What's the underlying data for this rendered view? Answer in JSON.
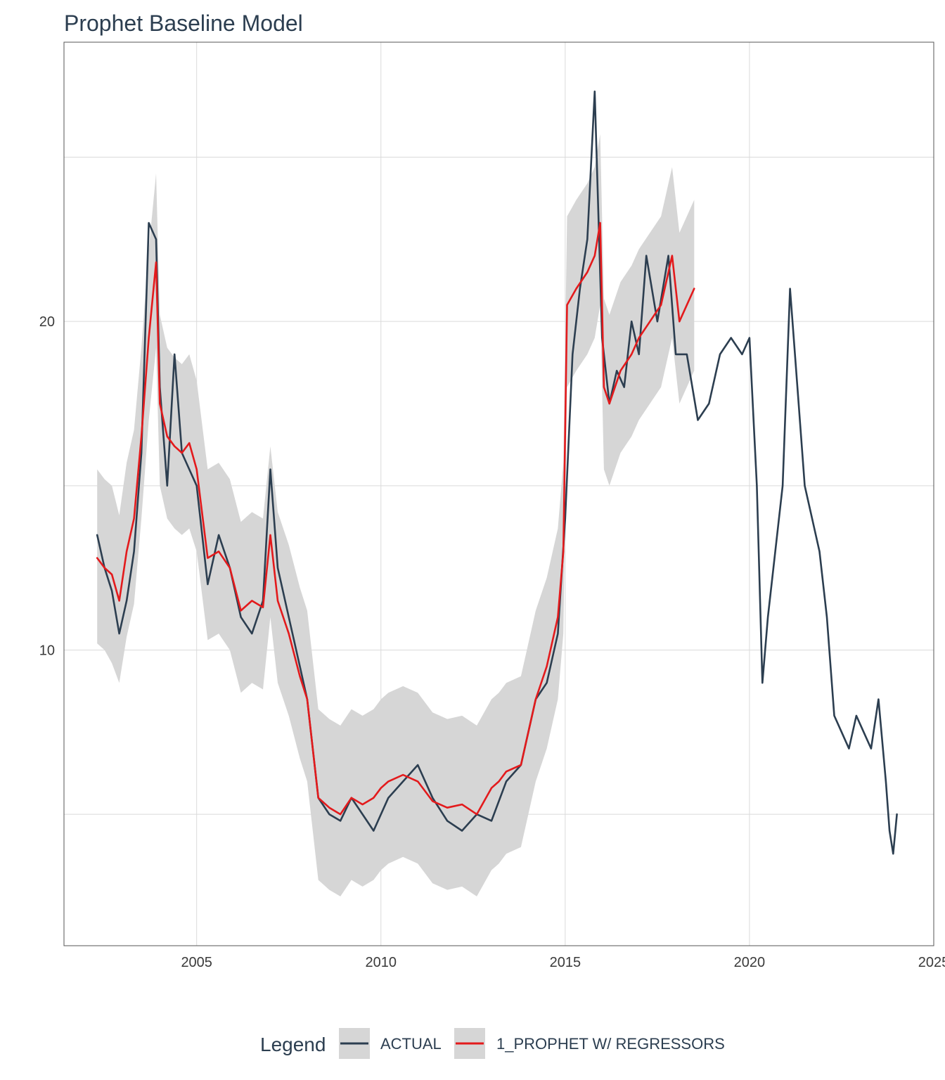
{
  "chart_data": {
    "type": "line",
    "title": "Prophet Baseline Model",
    "xlabel": "",
    "ylabel": "",
    "xlim": [
      2001.4,
      2025.0
    ],
    "ylim": [
      1.0,
      28.5
    ],
    "x_ticks": [
      2005,
      2010,
      2015,
      2020,
      2025
    ],
    "x_tick_labels": [
      "2005",
      "2010",
      "2015",
      "2020",
      "2025"
    ],
    "y_ticks": [
      10,
      20
    ],
    "y_tick_labels": [
      "10",
      "20"
    ],
    "y_minor_gridlines": [
      5,
      15,
      25
    ],
    "grid": true,
    "legend": {
      "title": "Legend",
      "position": "bottom",
      "entries": [
        "ACTUAL",
        "1_PROPHET W/ REGRESSORS"
      ]
    },
    "colors": {
      "actual": "#2c3e50",
      "forecast": "#e31a1c",
      "band": "#d6d6d6",
      "grid": "#dadada",
      "panel_border": "#555555"
    },
    "series": [
      {
        "name": "ACTUAL",
        "x": [
          2002.3,
          2002.5,
          2002.7,
          2002.9,
          2003.1,
          2003.3,
          2003.5,
          2003.7,
          2003.9,
          2004.0,
          2004.2,
          2004.4,
          2004.6,
          2004.8,
          2005.0,
          2005.3,
          2005.6,
          2005.9,
          2006.2,
          2006.5,
          2006.8,
          2007.0,
          2007.2,
          2007.5,
          2007.8,
          2008.0,
          2008.3,
          2008.6,
          2008.9,
          2009.2,
          2009.5,
          2009.8,
          2010.2,
          2010.6,
          2011.0,
          2011.4,
          2011.8,
          2012.2,
          2012.6,
          2013.0,
          2013.4,
          2013.8,
          2014.2,
          2014.5,
          2014.8,
          2015.0,
          2015.2,
          2015.4,
          2015.6,
          2015.8,
          2016.0,
          2016.2,
          2016.4,
          2016.6,
          2016.8,
          2017.0,
          2017.2,
          2017.5,
          2017.8,
          2018.0,
          2018.3,
          2018.6,
          2018.9,
          2019.2,
          2019.5,
          2019.8,
          2020.0,
          2020.2,
          2020.35,
          2020.5,
          2020.7,
          2020.9,
          2021.1,
          2021.3,
          2021.5,
          2021.7,
          2021.9,
          2022.1,
          2022.3,
          2022.5,
          2022.7,
          2022.9,
          2023.1,
          2023.3,
          2023.5,
          2023.7,
          2023.8,
          2023.9,
          2024.0
        ],
        "y": [
          13.5,
          12.5,
          11.8,
          10.5,
          11.5,
          13.0,
          16.0,
          23.0,
          22.5,
          18.0,
          15.0,
          19.0,
          16.0,
          15.5,
          15.0,
          12.0,
          13.5,
          12.5,
          11.0,
          10.5,
          11.5,
          15.5,
          12.5,
          11.0,
          9.5,
          8.5,
          5.5,
          5.0,
          4.8,
          5.5,
          5.0,
          4.5,
          5.5,
          6.0,
          6.5,
          5.5,
          4.8,
          4.5,
          5.0,
          4.8,
          6.0,
          6.5,
          8.5,
          9.0,
          10.5,
          14.0,
          19.0,
          21.0,
          22.5,
          27.0,
          19.5,
          17.5,
          18.5,
          18.0,
          20.0,
          19.0,
          22.0,
          20.0,
          22.0,
          19.0,
          19.0,
          17.0,
          17.5,
          19.0,
          19.5,
          19.0,
          19.5,
          15.0,
          9.0,
          11.0,
          13.0,
          15.0,
          21.0,
          18.0,
          15.0,
          14.0,
          13.0,
          11.0,
          8.0,
          7.5,
          7.0,
          8.0,
          7.5,
          7.0,
          8.5,
          6.0,
          4.5,
          3.8,
          5.0
        ]
      },
      {
        "name": "1_PROPHET W/ REGRESSORS",
        "x": [
          2002.3,
          2002.5,
          2002.7,
          2002.9,
          2003.1,
          2003.3,
          2003.5,
          2003.7,
          2003.9,
          2004.0,
          2004.2,
          2004.4,
          2004.6,
          2004.8,
          2005.0,
          2005.3,
          2005.6,
          2005.9,
          2006.2,
          2006.5,
          2006.8,
          2007.0,
          2007.2,
          2007.5,
          2007.8,
          2008.0,
          2008.3,
          2008.6,
          2008.9,
          2009.2,
          2009.5,
          2009.8,
          2010.0,
          2010.2,
          2010.6,
          2011.0,
          2011.4,
          2011.8,
          2012.2,
          2012.6,
          2013.0,
          2013.2,
          2013.4,
          2013.8,
          2014.2,
          2014.5,
          2014.8,
          2014.95,
          2015.05,
          2015.3,
          2015.6,
          2015.8,
          2015.95,
          2016.05,
          2016.2,
          2016.5,
          2016.8,
          2017.0,
          2017.3,
          2017.6,
          2017.9,
          2018.1,
          2018.3,
          2018.5
        ],
        "y": [
          12.8,
          12.5,
          12.3,
          11.5,
          13.0,
          14.0,
          16.5,
          19.5,
          21.8,
          17.5,
          16.5,
          16.2,
          16.0,
          16.3,
          15.5,
          12.8,
          13.0,
          12.5,
          11.2,
          11.5,
          11.3,
          13.5,
          11.5,
          10.5,
          9.2,
          8.5,
          5.5,
          5.2,
          5.0,
          5.5,
          5.3,
          5.5,
          5.8,
          6.0,
          6.2,
          6.0,
          5.4,
          5.2,
          5.3,
          5.0,
          5.8,
          6.0,
          6.3,
          6.5,
          8.5,
          9.5,
          11.0,
          13.0,
          20.5,
          21.0,
          21.5,
          22.0,
          23.0,
          18.0,
          17.5,
          18.5,
          19.0,
          19.5,
          20.0,
          20.5,
          22.0,
          20.0,
          20.5,
          21.0
        ]
      }
    ],
    "interval_band": {
      "name": "1_PROPHET W/ REGRESSORS",
      "x": [
        2002.3,
        2002.5,
        2002.7,
        2002.9,
        2003.1,
        2003.3,
        2003.5,
        2003.7,
        2003.9,
        2004.0,
        2004.2,
        2004.4,
        2004.6,
        2004.8,
        2005.0,
        2005.3,
        2005.6,
        2005.9,
        2006.2,
        2006.5,
        2006.8,
        2007.0,
        2007.2,
        2007.5,
        2007.8,
        2008.0,
        2008.3,
        2008.6,
        2008.9,
        2009.2,
        2009.5,
        2009.8,
        2010.0,
        2010.2,
        2010.6,
        2011.0,
        2011.4,
        2011.8,
        2012.2,
        2012.6,
        2013.0,
        2013.2,
        2013.4,
        2013.8,
        2014.2,
        2014.5,
        2014.8,
        2014.95,
        2015.05,
        2015.3,
        2015.6,
        2015.8,
        2015.95,
        2016.05,
        2016.2,
        2016.5,
        2016.8,
        2017.0,
        2017.3,
        2017.6,
        2017.9,
        2018.1,
        2018.3,
        2018.5
      ],
      "lower": [
        10.2,
        10.0,
        9.6,
        9.0,
        10.4,
        11.4,
        14.0,
        17.0,
        19.2,
        15.0,
        14.0,
        13.7,
        13.5,
        13.7,
        13.0,
        10.3,
        10.5,
        10.0,
        8.7,
        9.0,
        8.8,
        11.0,
        9.0,
        8.0,
        6.7,
        6.0,
        3.0,
        2.7,
        2.5,
        3.0,
        2.8,
        3.0,
        3.3,
        3.5,
        3.7,
        3.5,
        2.9,
        2.7,
        2.8,
        2.5,
        3.3,
        3.5,
        3.8,
        4.0,
        6.0,
        7.0,
        8.5,
        10.5,
        18.0,
        18.5,
        19.0,
        19.5,
        20.5,
        15.5,
        15.0,
        16.0,
        16.5,
        17.0,
        17.5,
        18.0,
        19.5,
        17.5,
        18.0,
        18.5
      ],
      "upper": [
        15.5,
        15.2,
        15.0,
        14.1,
        15.7,
        16.7,
        19.2,
        22.2,
        24.5,
        20.2,
        19.2,
        18.9,
        18.7,
        19.0,
        18.2,
        15.5,
        15.7,
        15.2,
        13.9,
        14.2,
        14.0,
        16.2,
        14.2,
        13.2,
        11.9,
        11.2,
        8.2,
        7.9,
        7.7,
        8.2,
        8.0,
        8.2,
        8.5,
        8.7,
        8.9,
        8.7,
        8.1,
        7.9,
        8.0,
        7.7,
        8.5,
        8.7,
        9.0,
        9.2,
        11.2,
        12.2,
        13.7,
        15.7,
        23.2,
        23.7,
        24.2,
        24.7,
        25.7,
        20.7,
        20.2,
        21.2,
        21.7,
        22.2,
        22.7,
        23.2,
        24.7,
        22.7,
        23.2,
        23.7
      ]
    }
  }
}
